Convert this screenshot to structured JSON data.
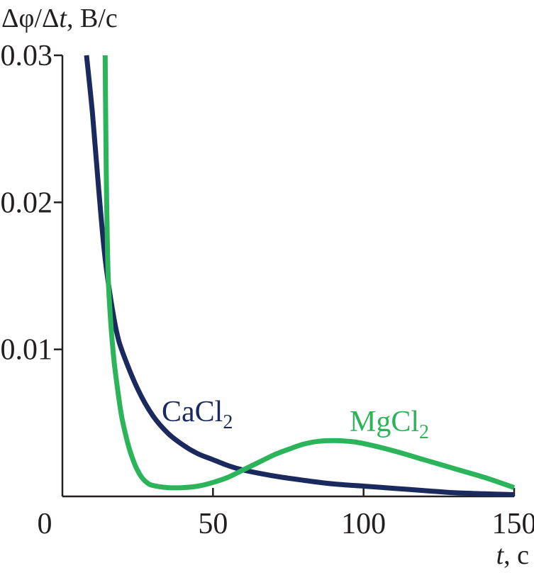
{
  "chart_data": {
    "type": "line",
    "title": "",
    "ylabel": {
      "delta": "Δ",
      "phi": "φ",
      "slash": "/",
      "delta2": "Δ",
      "t": "t",
      "unit": ", В/с"
    },
    "xlabel": {
      "t": "t",
      "unit": ", с"
    },
    "xlim": [
      0,
      150
    ],
    "ylim": [
      0,
      0.03
    ],
    "x_ticks": [
      0,
      50,
      100,
      150
    ],
    "x_tick_labels": [
      "0",
      "50",
      "100",
      "150"
    ],
    "y_ticks": [
      0.01,
      0.02,
      0.03
    ],
    "y_tick_labels": [
      "0.01",
      "0.02",
      "0.03"
    ],
    "grid": false,
    "series": [
      {
        "name": "CaCl2",
        "label_main": "CaCl",
        "label_sub": "2",
        "color": "#1b2a5e",
        "points": [
          [
            8,
            0.03
          ],
          [
            10,
            0.026
          ],
          [
            12,
            0.021
          ],
          [
            14,
            0.0165
          ],
          [
            16,
            0.0135
          ],
          [
            18,
            0.0112
          ],
          [
            20,
            0.0098
          ],
          [
            25,
            0.0073
          ],
          [
            30,
            0.0055
          ],
          [
            35,
            0.0043
          ],
          [
            40,
            0.0035
          ],
          [
            45,
            0.0029
          ],
          [
            50,
            0.0025
          ],
          [
            55,
            0.0021
          ],
          [
            60,
            0.0018
          ],
          [
            70,
            0.0014
          ],
          [
            80,
            0.0011
          ],
          [
            90,
            0.00085
          ],
          [
            100,
            0.0007
          ],
          [
            110,
            0.00055
          ],
          [
            120,
            0.0004
          ],
          [
            130,
            0.00025
          ],
          [
            140,
            0.00018
          ],
          [
            150,
            0.00012
          ]
        ]
      },
      {
        "name": "MgCl2",
        "label_main": "MgCl",
        "label_sub": "2",
        "color": "#2cb45a",
        "points": [
          [
            14.2,
            0.03
          ],
          [
            14.4,
            0.025
          ],
          [
            14.7,
            0.02
          ],
          [
            15.2,
            0.015
          ],
          [
            16,
            0.012
          ],
          [
            17,
            0.0095
          ],
          [
            18,
            0.0078
          ],
          [
            19,
            0.0063
          ],
          [
            20,
            0.0051
          ],
          [
            22,
            0.0034
          ],
          [
            24,
            0.0022
          ],
          [
            26,
            0.0014
          ],
          [
            28,
            0.00095
          ],
          [
            30,
            0.00075
          ],
          [
            35,
            0.0006
          ],
          [
            40,
            0.0006
          ],
          [
            45,
            0.0007
          ],
          [
            50,
            0.00095
          ],
          [
            55,
            0.0013
          ],
          [
            60,
            0.0018
          ],
          [
            65,
            0.0023
          ],
          [
            70,
            0.0028
          ],
          [
            75,
            0.0032
          ],
          [
            80,
            0.00355
          ],
          [
            85,
            0.00375
          ],
          [
            90,
            0.0038
          ],
          [
            95,
            0.00375
          ],
          [
            100,
            0.0036
          ],
          [
            110,
            0.0031
          ],
          [
            120,
            0.0025
          ],
          [
            130,
            0.0019
          ],
          [
            140,
            0.0013
          ],
          [
            150,
            0.0006
          ]
        ]
      }
    ]
  }
}
